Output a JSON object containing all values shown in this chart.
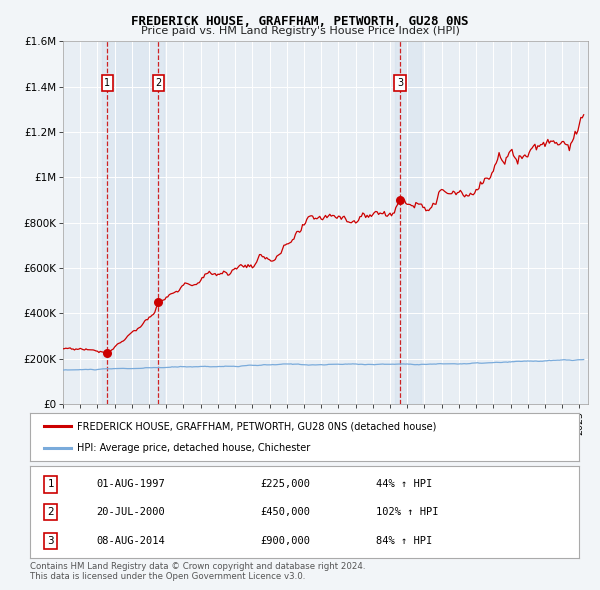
{
  "title": "FREDERICK HOUSE, GRAFFHAM, PETWORTH, GU28 0NS",
  "subtitle": "Price paid vs. HM Land Registry's House Price Index (HPI)",
  "hpi_label": "HPI: Average price, detached house, Chichester",
  "property_label": "FREDERICK HOUSE, GRAFFHAM, PETWORTH, GU28 0NS (detached house)",
  "sale_color": "#cc0000",
  "hpi_color": "#7aabdb",
  "background_color": "#f2f5f8",
  "plot_bg_color": "#e8eef4",
  "sales": [
    {
      "num": 1,
      "date_num": 1997.583,
      "price": 225000,
      "label": "01-AUG-1997",
      "pct": "44%"
    },
    {
      "num": 2,
      "date_num": 2000.542,
      "price": 450000,
      "label": "20-JUL-2000",
      "pct": "102%"
    },
    {
      "num": 3,
      "date_num": 2014.583,
      "price": 900000,
      "label": "08-AUG-2014",
      "pct": "84%"
    }
  ],
  "ylim": [
    0,
    1600000
  ],
  "xlim": [
    1995.0,
    2025.5
  ],
  "yticks": [
    0,
    200000,
    400000,
    600000,
    800000,
    1000000,
    1200000,
    1400000,
    1600000
  ],
  "ytick_labels": [
    "£0",
    "£200K",
    "£400K",
    "£600K",
    "£800K",
    "£1M",
    "£1.2M",
    "£1.4M",
    "£1.6M"
  ],
  "footer1": "Contains HM Land Registry data © Crown copyright and database right 2024.",
  "footer2": "This data is licensed under the Open Government Licence v3.0."
}
